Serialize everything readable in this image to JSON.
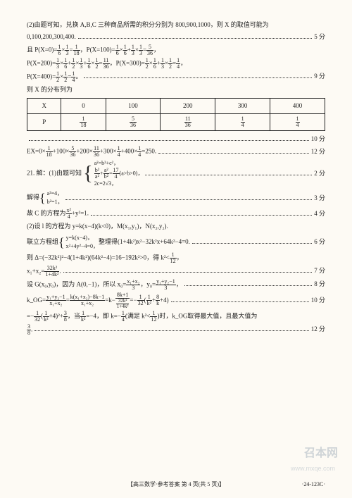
{
  "p1": "(2)由题可知，兑换 A,B,C 三种商品所需的积分分别为 800,900,1000，则 X 的取值可能为",
  "p2a": "0,100,200,300,400.",
  "pts5": "5 分",
  "p3": "且 P(X=0)=",
  "f1_6n": "1",
  "f1_6d": "6",
  "f1_3n": "1",
  "f1_3d": "3",
  "f1_18n": "1",
  "f1_18d": "18",
  "p3b": "，P(X=100)=",
  "f5_36n": "5",
  "f5_36d": "36",
  "p3c": "，",
  "p4": "P(X=200)=",
  "f1_2n": "1",
  "f1_2d": "2",
  "f11_36n": "11",
  "f11_36d": "36",
  "p4b": "，P(X=300)=",
  "f1_4n": "1",
  "f1_4d": "4",
  "p4c": "，",
  "p5": "P(X=400)=",
  "p5b": "。",
  "pts9": "9 分",
  "p6": "则 X 的分布列为",
  "th_X": "X",
  "th_0": "0",
  "th_100": "100",
  "th_200": "200",
  "th_300": "300",
  "th_400": "400",
  "th_P": "P",
  "pts10": "10 分",
  "p7": "EX=0×",
  "p7a": "+100×",
  "p7b": "+200×",
  "p7c": "+300×",
  "p7d": "+400×",
  "p7e": "=250.",
  "pts12": "12 分",
  "q21": "21. 解：(1)由题可知",
  "br1a": "a²=b²+c²，",
  "br1b_l": "b²",
  "br1b_la": "a²",
  "br1b_r": "a²",
  "br1b_ra": "b²",
  "br1b_eq": "17",
  "br1b_eqd": "4",
  "br1b_t": "(a>b>0)，",
  "br1c": "2c=2√3，",
  "pts2": "2 分",
  "p8": "解得",
  "br2a": "a²=4，",
  "br2b": "b²=1，",
  "pts3": "3 分",
  "p9": "故 C 的方程为",
  "p9b": "+y²=1.",
  "fx4n": "x²",
  "fx4d": "4",
  "pts4": "4 分",
  "p10": "(2)设 l 的方程为 y=k(x−4)(k<0)，M(x₁,y₁)，N(x₂,y₂).",
  "p11": "联立方程组",
  "br3a": "y=k(x−4)，",
  "br3b": "x²+4y²−4=0，",
  "p11b": "整理得(1+4k²)x²−32k²x+64k²−4=0.",
  "pts6": "6 分",
  "p12": "则 Δ=(−32k²)²−4(1+4k²)(64k²−4)=16−192k²>0，得 k²<",
  "f1_12n": "1",
  "f1_12d": "12",
  "p12b": "，",
  "p13": "x₁+x₂=",
  "f32n": "32k²",
  "f32d": "1+4k²",
  "p13b": ".",
  "pts7": "7 分",
  "p14": "设 G(x₀,y₀)，因为 A(0,−1)，所以 x₀=",
  "fxx3n": "x₁+x₂",
  "fxx3d": "3",
  "p14b": "，y₀=",
  "fyy3n": "y₁+y₂−1",
  "fyy3d": "3",
  "p14c": "，",
  "pts8": "8 分",
  "p15": "k_OG=",
  "fk1n": "y₁+y₂−1",
  "fk1d": "x₁+x₂",
  "p15a": "=",
  "fk2n": "k(x₁+x₂)−8k−1",
  "fk2d": "x₁+x₂",
  "p15b": "=k−",
  "fk3n": "8k+1",
  "fk3ai": "32k²",
  "fk3bd": "1+4k²",
  "p15c": "=−",
  "fk4n": "1",
  "fk4d": "32",
  "p15d": "(",
  "fk5n": "1",
  "fk5d": "k²",
  "p15e": "+",
  "fk6n": "8",
  "fk6d": "k",
  "p15f": "+4)",
  "pts10b": "10 分",
  "p16": "=−",
  "p16a": "(",
  "p16b": "+4)²+",
  "f38n": "3",
  "f38d": "8",
  "p16c": "，当",
  "p16d": "=−4，即 k=−",
  "p16e": "(满足 k²<",
  "p16f": ")时，k_OG取得最大值，且最大值为",
  "p17": ".",
  "pts12b": "12 分",
  "footer": "【高三数学·参考答案  第 4 页(共 5 页)】",
  "pagenum": "·24-123C·",
  "wm": "召本网",
  "wm2": "www.mxqe.com"
}
